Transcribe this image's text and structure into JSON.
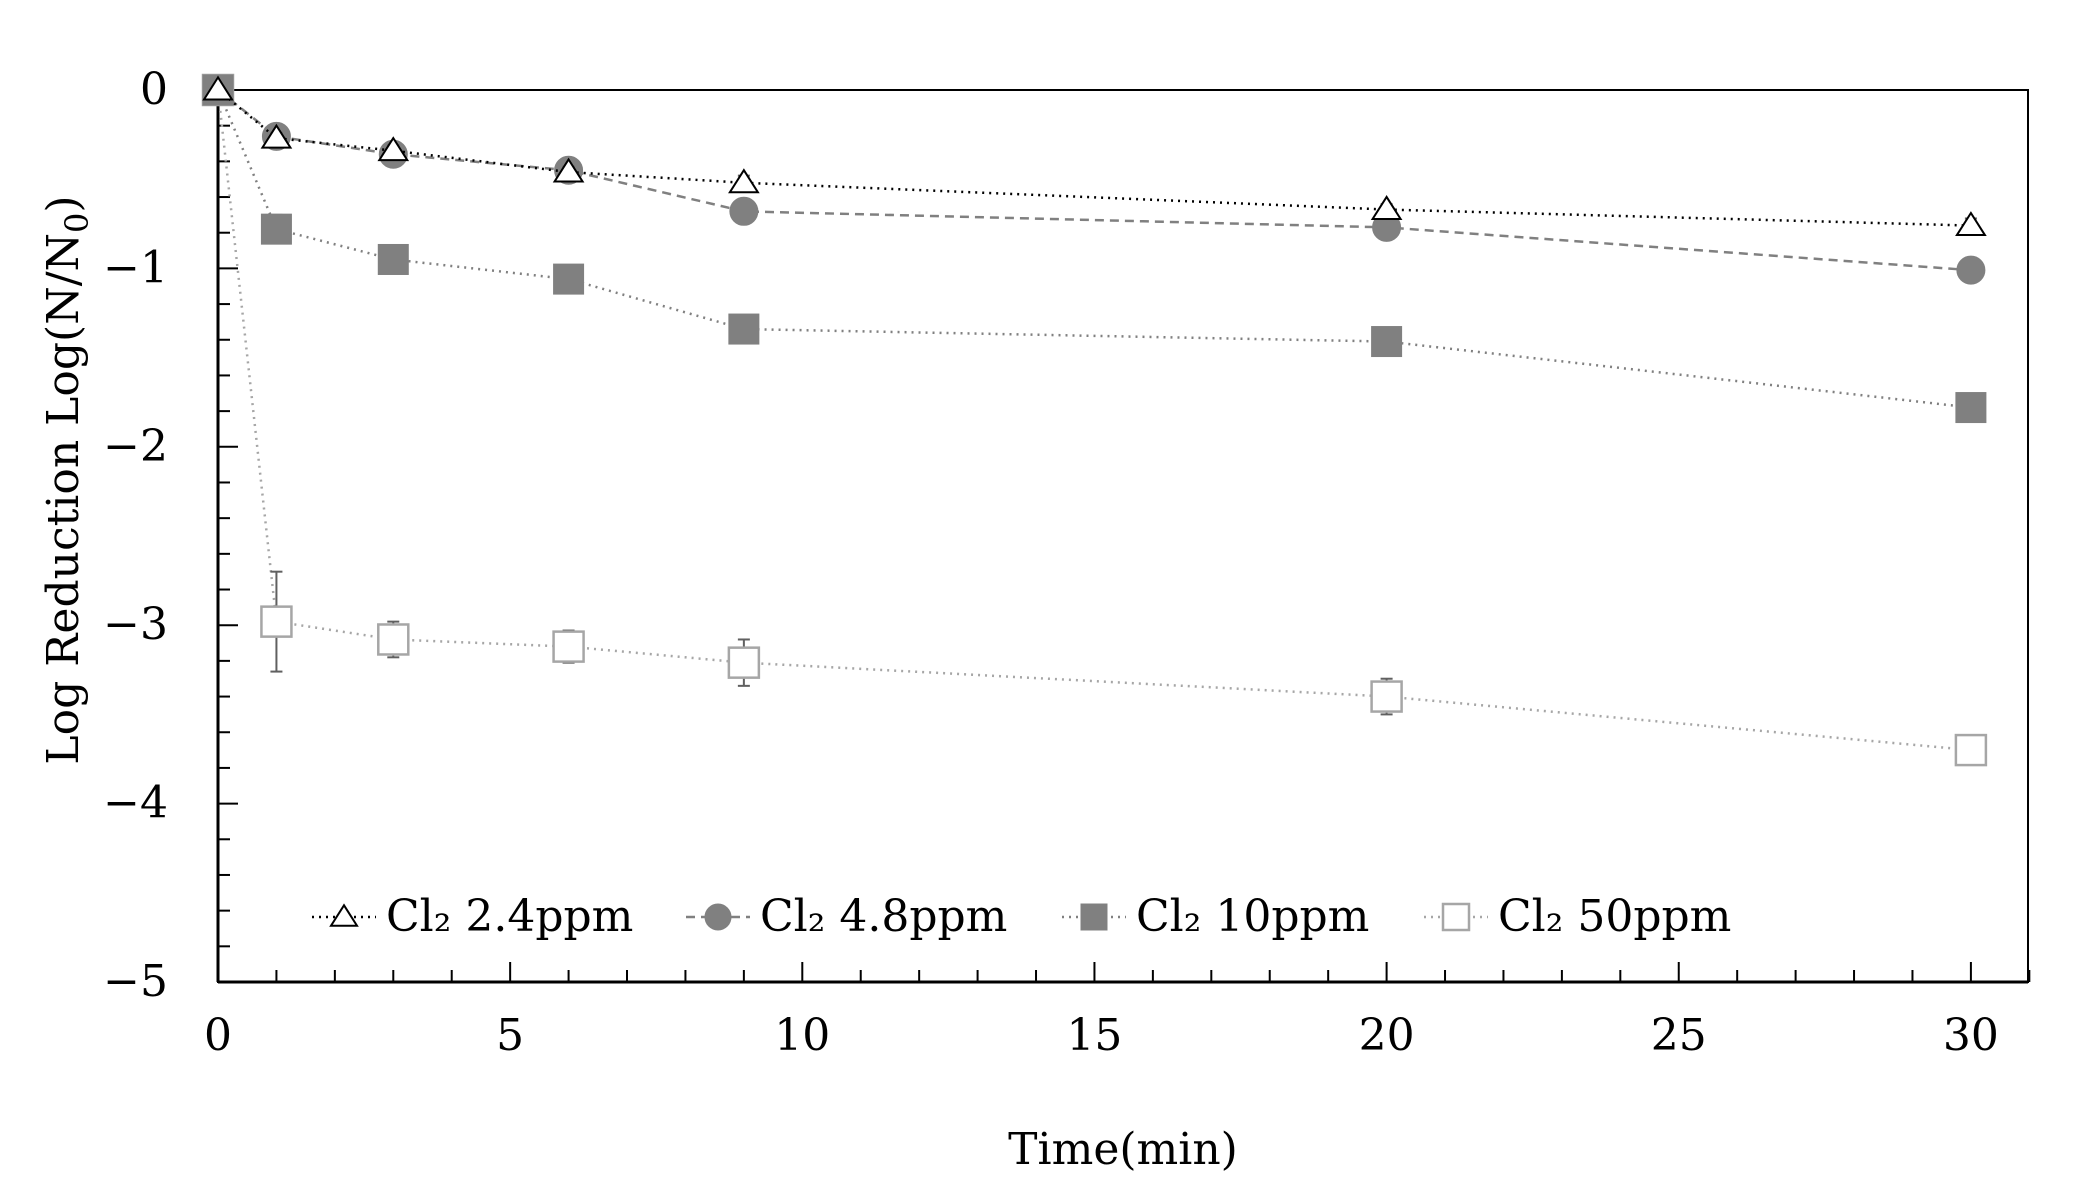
{
  "chart_data": {
    "type": "line",
    "title": "",
    "xlabel": "Time(min)",
    "ylabel": "Log Reduction Log(N/N",
    "ylabel_subscript": "0",
    "ylabel_suffix": ")",
    "xlim": [
      0,
      31
    ],
    "ylim": [
      -5,
      0
    ],
    "xticks": [
      0,
      5,
      10,
      15,
      20,
      25,
      30
    ],
    "yticks": [
      0,
      -1,
      -2,
      -3,
      -4,
      -5
    ],
    "x_minor_step": 1,
    "y_minor_step": 0.2,
    "grid": false,
    "legend_position": "bottom-inside",
    "x": [
      0,
      1,
      3,
      6,
      9,
      20,
      30
    ],
    "series": [
      {
        "name": "Cl₂ 2.4ppm",
        "marker": "open-triangle",
        "line_style": "dotted",
        "color": "#000000",
        "values": [
          0,
          -0.27,
          -0.34,
          -0.46,
          -0.52,
          -0.67,
          -0.76
        ],
        "errors": [
          0,
          0.03,
          0.03,
          0.03,
          0.04,
          0.03,
          0.04
        ]
      },
      {
        "name": "Cl₂ 4.8ppm",
        "marker": "filled-circle",
        "line_style": "dashed",
        "color": "#808080",
        "values": [
          0,
          -0.26,
          -0.36,
          -0.45,
          -0.68,
          -0.77,
          -1.01
        ],
        "errors": [
          0,
          0.03,
          0.03,
          0.03,
          0.03,
          0.03,
          0.03
        ]
      },
      {
        "name": "Cl₂ 10ppm",
        "marker": "filled-square",
        "line_style": "dotted",
        "color": "#808080",
        "values": [
          0,
          -0.78,
          -0.95,
          -1.06,
          -1.34,
          -1.41,
          -1.78
        ],
        "errors": [
          0,
          0.08,
          0.04,
          0.04,
          0.04,
          0.04,
          0.04
        ]
      },
      {
        "name": "Cl₂ 50ppm",
        "marker": "open-square",
        "line_style": "dotted",
        "color": "#a6a6a6",
        "values": [
          0,
          -2.98,
          -3.08,
          -3.12,
          -3.21,
          -3.4,
          -3.7
        ],
        "errors": [
          0,
          0.28,
          0.1,
          0.09,
          0.13,
          0.1,
          0.07
        ]
      }
    ]
  }
}
